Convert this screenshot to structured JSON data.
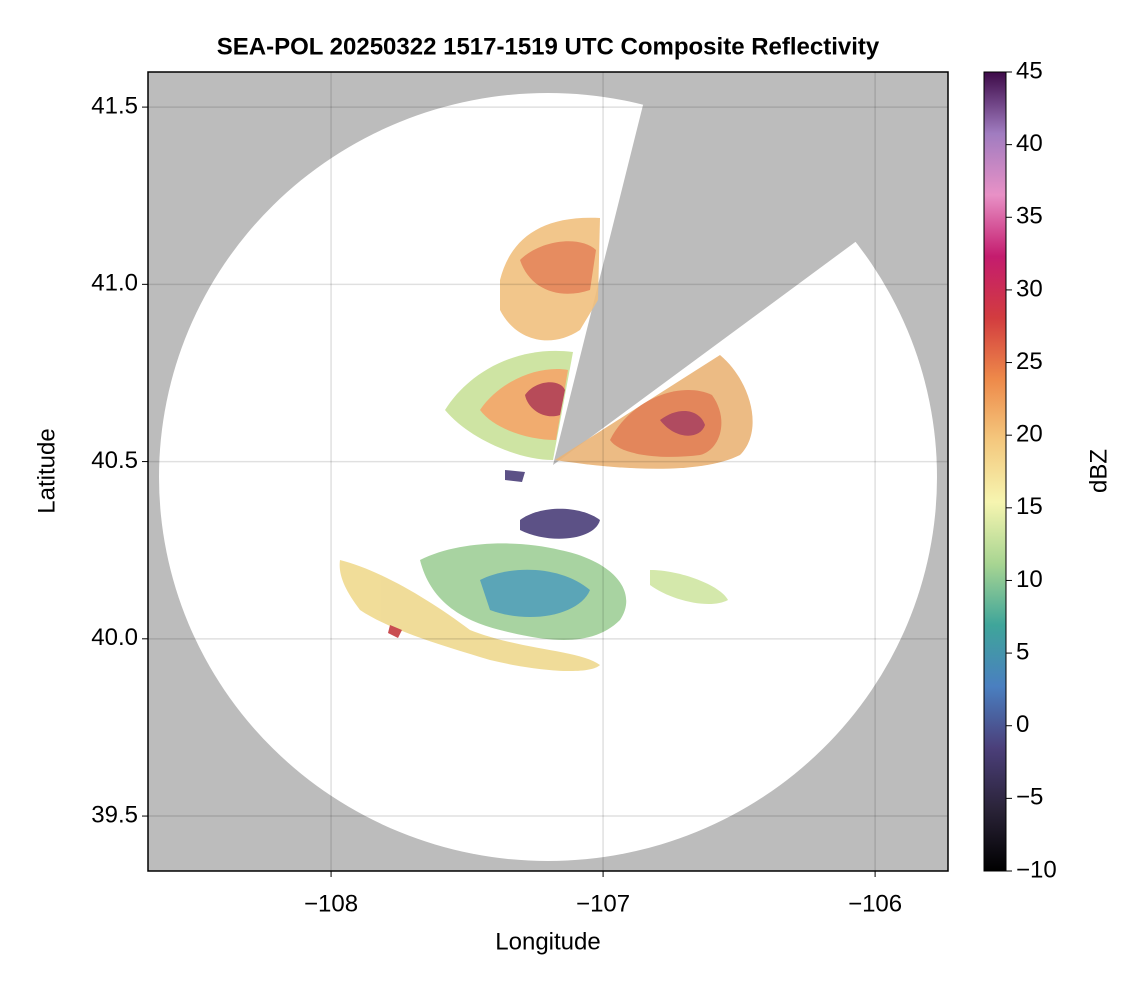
{
  "chart_data": {
    "type": "radar-map",
    "title": "SEA-POL 20250322 1517-1519 UTC Composite Reflectivity",
    "x_label": "Longitude",
    "y_label": "Latitude",
    "xlim": [
      -108.673,
      -105.732
    ],
    "ylim": [
      39.345,
      41.599
    ],
    "xticks": [
      {
        "value": -108,
        "label": "−108"
      },
      {
        "value": -107,
        "label": "−107"
      },
      {
        "value": -106,
        "label": "−106"
      }
    ],
    "yticks": [
      39.5,
      40.0,
      40.5,
      41.0,
      41.5
    ],
    "grid": true,
    "colorbar": {
      "label": "dBZ",
      "lim": [
        -10,
        45
      ],
      "ticks": [
        {
          "value": -10,
          "label": "−10"
        },
        {
          "value": -5,
          "label": "−5"
        },
        0,
        5,
        10,
        15,
        20,
        25,
        30,
        35,
        40,
        45
      ],
      "colors": [
        "#000000",
        "#2a2338",
        "#4b3f7a",
        "#4a7fc0",
        "#3fa59a",
        "#a8d592",
        "#f6f5b0",
        "#f4c87e",
        "#ee8a4a",
        "#d23c3f",
        "#c41c6e",
        "#e891c6",
        "#a07cc0",
        "#3d0a48"
      ]
    }
  }
}
